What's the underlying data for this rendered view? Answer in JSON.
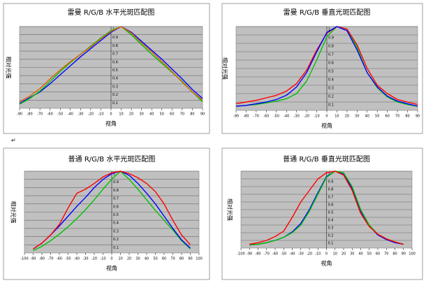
{
  "mark": "↵",
  "chart_data": [
    {
      "type": "line",
      "title": "雷曼 R/G/B 水平光斑匹配图",
      "x_label": "视角",
      "y_label": "相对光强",
      "x": [
        -90,
        -80,
        -70,
        -60,
        -50,
        -40,
        -30,
        -20,
        -10,
        0,
        10,
        20,
        30,
        40,
        50,
        60,
        70,
        80,
        90
      ],
      "xlim": [
        -90,
        90
      ],
      "xticks": [
        -90,
        -80,
        -70,
        -60,
        -50,
        -40,
        -30,
        -20,
        -10,
        0,
        10,
        20,
        30,
        40,
        50,
        60,
        70,
        80,
        90
      ],
      "ylim": [
        0,
        1
      ],
      "yticks": [
        0.1,
        0.2,
        0.3,
        0.4,
        0.5,
        0.6,
        0.7,
        0.8,
        0.9,
        1
      ],
      "grid": true,
      "series": [
        {
          "color": "#0000ff",
          "values": [
            0.06,
            0.13,
            0.2,
            0.3,
            0.41,
            0.52,
            0.63,
            0.73,
            0.83,
            0.93,
            1,
            0.93,
            0.82,
            0.71,
            0.6,
            0.48,
            0.36,
            0.23,
            0.12
          ]
        },
        {
          "color": "#00c000",
          "values": [
            0.05,
            0.12,
            0.21,
            0.33,
            0.45,
            0.56,
            0.66,
            0.76,
            0.86,
            0.95,
            1,
            0.9,
            0.78,
            0.66,
            0.55,
            0.44,
            0.33,
            0.2,
            0.08
          ]
        },
        {
          "color": "#e06000",
          "values": [
            0.08,
            0.15,
            0.24,
            0.36,
            0.47,
            0.57,
            0.66,
            0.75,
            0.85,
            0.94,
            1,
            0.92,
            0.8,
            0.69,
            0.57,
            0.45,
            0.32,
            0.2,
            0.1
          ]
        }
      ]
    },
    {
      "type": "line",
      "title": "雷曼 R/G/B 垂直光斑匹配图",
      "x_label": "视角",
      "y_label": "相对光强",
      "x": [
        -90,
        -80,
        -70,
        -60,
        -50,
        -40,
        -30,
        -20,
        -10,
        0,
        10,
        20,
        30,
        40,
        50,
        60,
        70,
        80,
        90
      ],
      "xlim": [
        -90,
        90
      ],
      "xticks": [
        -90,
        -80,
        -70,
        -60,
        -50,
        -40,
        -30,
        -20,
        -10,
        0,
        10,
        20,
        30,
        40,
        50,
        60,
        70,
        80,
        90
      ],
      "ylim": [
        0,
        1
      ],
      "yticks": [
        0.1,
        0.2,
        0.3,
        0.4,
        0.5,
        0.6,
        0.7,
        0.8,
        0.9,
        1
      ],
      "grid": true,
      "series": [
        {
          "color": "#00c000",
          "values": [
            0.05,
            0.06,
            0.07,
            0.09,
            0.11,
            0.14,
            0.2,
            0.35,
            0.6,
            0.88,
            1,
            0.97,
            0.75,
            0.45,
            0.27,
            0.16,
            0.1,
            0.07,
            0.05
          ]
        },
        {
          "color": "#ff0000",
          "values": [
            0.08,
            0.1,
            0.12,
            0.15,
            0.18,
            0.23,
            0.32,
            0.48,
            0.72,
            0.92,
            1,
            0.97,
            0.78,
            0.5,
            0.3,
            0.2,
            0.13,
            0.1,
            0.07
          ]
        },
        {
          "color": "#0000ff",
          "values": [
            0.05,
            0.06,
            0.08,
            0.1,
            0.13,
            0.18,
            0.28,
            0.45,
            0.7,
            0.93,
            1,
            0.95,
            0.72,
            0.45,
            0.28,
            0.17,
            0.11,
            0.08,
            0.05
          ]
        }
      ]
    },
    {
      "type": "line",
      "title": "普通 R/G/B 水平光斑匹配图",
      "x_label": "视角",
      "y_label": "相对光强",
      "x": [
        -90,
        -80,
        -70,
        -60,
        -50,
        -40,
        -30,
        -20,
        -10,
        0,
        10,
        20,
        30,
        40,
        50,
        60,
        70,
        80,
        90
      ],
      "xlim": [
        -100,
        100
      ],
      "xticks": [
        -100,
        -90,
        -80,
        -70,
        -60,
        -50,
        -40,
        -30,
        -20,
        -10,
        0,
        10,
        20,
        30,
        40,
        50,
        60,
        70,
        80,
        90,
        100
      ],
      "ylim": [
        0,
        1
      ],
      "yticks": [
        0.1,
        0.2,
        0.3,
        0.4,
        0.5,
        0.6,
        0.7,
        0.8,
        0.9,
        1
      ],
      "grid": true,
      "series": [
        {
          "color": "#00c000",
          "values": [
            0.03,
            0.08,
            0.15,
            0.23,
            0.32,
            0.42,
            0.53,
            0.65,
            0.78,
            0.9,
            1,
            0.9,
            0.78,
            0.65,
            0.52,
            0.4,
            0.28,
            0.15,
            0.05
          ]
        },
        {
          "color": "#0000ff",
          "values": [
            0.05,
            0.12,
            0.22,
            0.33,
            0.45,
            0.57,
            0.68,
            0.8,
            0.9,
            0.97,
            1,
            0.95,
            0.85,
            0.73,
            0.6,
            0.45,
            0.3,
            0.16,
            0.06
          ]
        },
        {
          "color": "#ff0000",
          "values": [
            0.05,
            0.12,
            0.22,
            0.35,
            0.55,
            0.73,
            0.78,
            0.85,
            0.93,
            0.98,
            1,
            0.97,
            0.92,
            0.85,
            0.75,
            0.6,
            0.4,
            0.22,
            0.1
          ]
        }
      ]
    },
    {
      "type": "line",
      "title": "普通 R/G/B 垂直光斑匹配图",
      "x_label": "视角",
      "y_label": "相对光强",
      "x": [
        -90,
        -80,
        -70,
        -60,
        -50,
        -40,
        -30,
        -20,
        -10,
        0,
        10,
        20,
        30,
        40,
        50,
        60,
        70,
        80,
        90
      ],
      "xlim": [
        -100,
        100
      ],
      "xticks": [
        -100,
        -90,
        -80,
        -70,
        -60,
        -50,
        -40,
        -30,
        -20,
        -10,
        0,
        10,
        20,
        30,
        40,
        50,
        60,
        70,
        80,
        90,
        100
      ],
      "ylim": [
        0,
        1
      ],
      "yticks": [
        0.1,
        0.2,
        0.3,
        0.4,
        0.5,
        0.6,
        0.7,
        0.8,
        0.9,
        1
      ],
      "grid": true,
      "series": [
        {
          "color": "#0000ff",
          "values": [
            0.04,
            0.05,
            0.07,
            0.1,
            0.14,
            0.21,
            0.32,
            0.5,
            0.72,
            0.93,
            1,
            0.96,
            0.78,
            0.48,
            0.29,
            0.17,
            0.11,
            0.07,
            0.05
          ]
        },
        {
          "color": "#00c000",
          "values": [
            0.04,
            0.05,
            0.07,
            0.1,
            0.14,
            0.2,
            0.3,
            0.48,
            0.7,
            0.92,
            1,
            0.98,
            0.8,
            0.5,
            0.3,
            0.18,
            0.12,
            0.08,
            0.05
          ]
        },
        {
          "color": "#ff0000",
          "values": [
            0.05,
            0.07,
            0.1,
            0.15,
            0.22,
            0.4,
            0.6,
            0.75,
            0.9,
            0.98,
            1,
            0.95,
            0.75,
            0.45,
            0.28,
            0.18,
            0.12,
            0.08,
            0.05
          ]
        }
      ]
    }
  ]
}
